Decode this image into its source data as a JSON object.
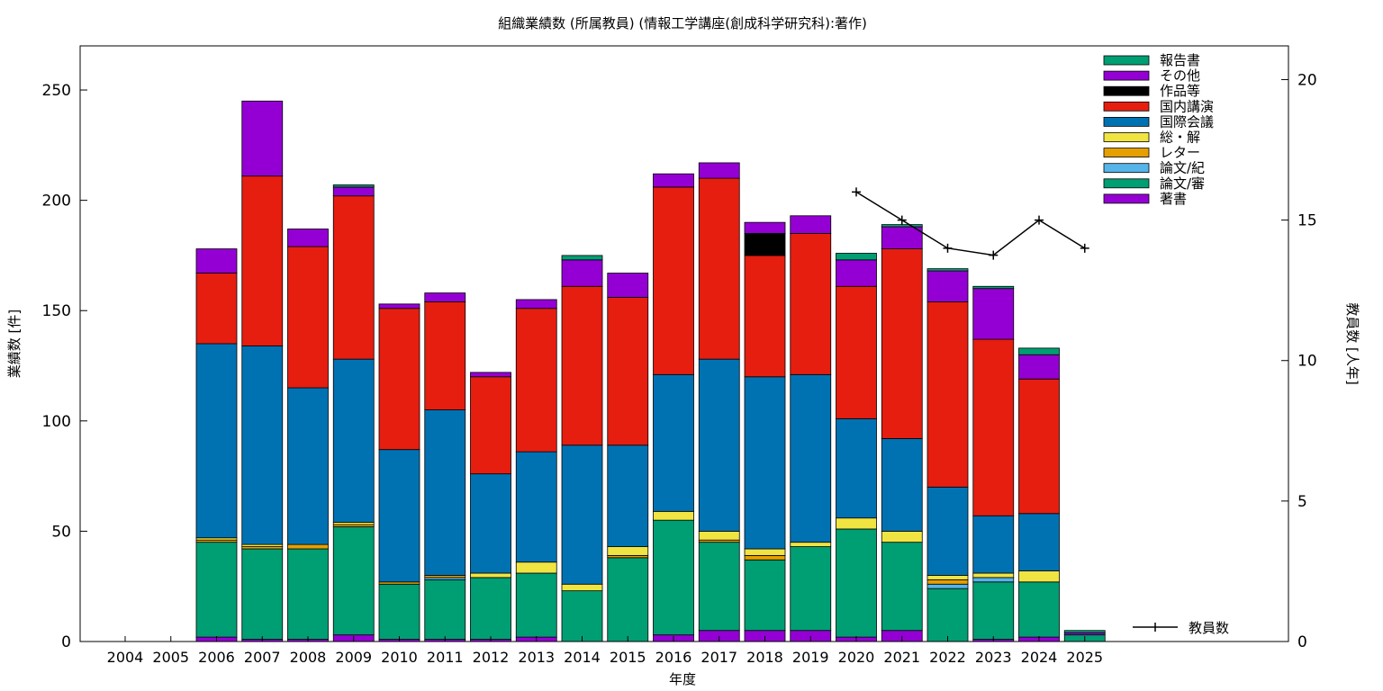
{
  "chart_data": {
    "type": "bar",
    "title": "組織業績数 (所属教員) (情報工学講座(創成科学研究科):著作)",
    "xlabel": "年度",
    "ylabel": "業績数 [件]",
    "y2label": "教員数 [人年]",
    "ylim": [
      0,
      270
    ],
    "y2lim": [
      0,
      21.2
    ],
    "yticks": [
      0,
      50,
      100,
      150,
      200,
      250
    ],
    "y2ticks": [
      0,
      5,
      10,
      15,
      20
    ],
    "grid": false,
    "legend_position": "top-right",
    "stacked": true,
    "categories": [
      "2004",
      "2005",
      "2006",
      "2007",
      "2008",
      "2009",
      "2010",
      "2011",
      "2012",
      "2013",
      "2014",
      "2015",
      "2016",
      "2017",
      "2018",
      "2019",
      "2020",
      "2021",
      "2022",
      "2023",
      "2024",
      "2025"
    ],
    "series": [
      {
        "name": "著書",
        "color": "#9400d3",
        "values": [
          0,
          0,
          2,
          1,
          1,
          3,
          1,
          1,
          1,
          2,
          0,
          0,
          3,
          5,
          5,
          5,
          2,
          5,
          0,
          1,
          2,
          0
        ]
      },
      {
        "name": "論文/審",
        "color": "#009e73",
        "values": [
          0,
          0,
          43,
          41,
          41,
          49,
          25,
          27,
          28,
          29,
          23,
          38,
          52,
          40,
          32,
          38,
          49,
          40,
          24,
          26,
          25,
          3
        ]
      },
      {
        "name": "論文/紀",
        "color": "#56b4e9",
        "values": [
          0,
          0,
          0,
          0,
          0,
          0,
          0,
          1,
          0,
          0,
          0,
          0,
          0,
          0,
          0,
          0,
          0,
          0,
          2,
          2,
          0,
          0
        ]
      },
      {
        "name": "レター",
        "color": "#e69f00",
        "values": [
          0,
          0,
          1,
          1,
          2,
          1,
          1,
          1,
          0,
          0,
          0,
          1,
          0,
          1,
          2,
          0,
          0,
          0,
          2,
          0,
          0,
          0
        ]
      },
      {
        "name": "総・解",
        "color": "#f0e442",
        "values": [
          0,
          0,
          1,
          1,
          0,
          1,
          0,
          0,
          2,
          5,
          3,
          4,
          4,
          4,
          3,
          2,
          5,
          5,
          2,
          2,
          5,
          0
        ]
      },
      {
        "name": "国際会議",
        "color": "#0072b2",
        "values": [
          0,
          0,
          88,
          90,
          71,
          74,
          60,
          75,
          45,
          50,
          63,
          46,
          62,
          78,
          78,
          76,
          45,
          42,
          40,
          26,
          26,
          0
        ]
      },
      {
        "name": "国内講演",
        "color": "#e51e10",
        "values": [
          0,
          0,
          32,
          77,
          64,
          74,
          64,
          49,
          44,
          65,
          72,
          67,
          85,
          82,
          55,
          64,
          60,
          86,
          84,
          80,
          61,
          0
        ]
      },
      {
        "name": "作品等",
        "color": "#000000",
        "values": [
          0,
          0,
          0,
          0,
          0,
          0,
          0,
          0,
          0,
          0,
          0,
          0,
          0,
          0,
          10,
          0,
          0,
          0,
          0,
          0,
          0,
          0
        ]
      },
      {
        "name": "その他",
        "color": "#9400d3",
        "values": [
          0,
          0,
          11,
          34,
          8,
          4,
          2,
          4,
          2,
          4,
          12,
          11,
          6,
          7,
          5,
          8,
          12,
          10,
          14,
          23,
          11,
          1
        ]
      },
      {
        "name": "報告書",
        "color": "#009e73",
        "values": [
          0,
          0,
          0,
          0,
          0,
          1,
          0,
          0,
          0,
          0,
          2,
          0,
          0,
          0,
          0,
          0,
          3,
          1,
          1,
          1,
          3,
          1
        ]
      }
    ],
    "line_series": {
      "name": "教員数",
      "color": "#000000",
      "x": [
        "2020",
        "2021",
        "2022",
        "2023",
        "2024",
        "2025"
      ],
      "values": [
        16,
        15,
        14,
        13.75,
        15,
        14
      ]
    }
  }
}
